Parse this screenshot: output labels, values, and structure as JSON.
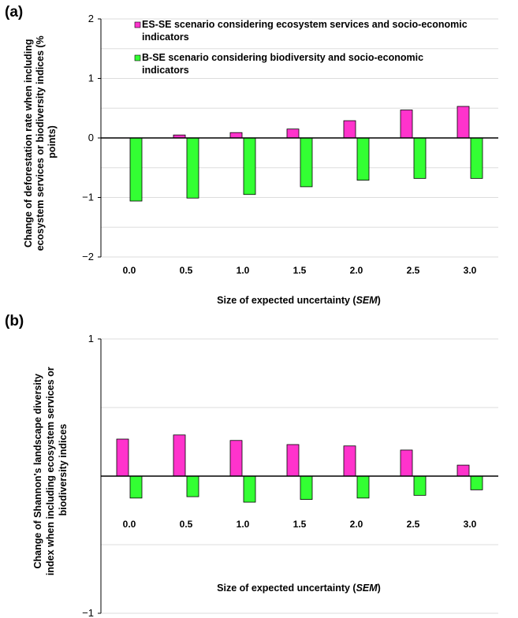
{
  "chart_data": [
    {
      "panel": "(a)",
      "type": "bar",
      "categories": [
        "0.0",
        "0.5",
        "1.0",
        "1.5",
        "2.0",
        "2.5",
        "3.0"
      ],
      "series": [
        {
          "name": "ES-SE scenario considering ecosystem services and socio-economic indicators",
          "color": "#ff33cc",
          "values": [
            0.0,
            0.05,
            0.09,
            0.15,
            0.29,
            0.47,
            0.53
          ]
        },
        {
          "name": "B-SE scenario considering biodiversity and socio-economic indicators",
          "color": "#33ff33",
          "values": [
            -1.06,
            -1.01,
            -0.95,
            -0.82,
            -0.71,
            -0.68,
            -0.68
          ]
        }
      ],
      "xlabel": "Size of expected uncertainty (",
      "xlabel_italic": "SEM",
      "xlabel_end": ")",
      "ylabel": [
        "Change of deforestation rate when including",
        "ecosystem services or biodiversity indices (%",
        "points)"
      ],
      "ylim": [
        -2,
        2
      ],
      "yticks": [
        "2",
        "1",
        "0",
        "−1",
        "−2"
      ],
      "legend": "top"
    },
    {
      "panel": "(b)",
      "type": "bar",
      "categories": [
        "0.0",
        "0.5",
        "1.0",
        "1.5",
        "2.0",
        "2.5",
        "3.0"
      ],
      "series": [
        {
          "name": "ES-SE scenario considering ecosystem services and socio-economic indicators",
          "color": "#ff33cc",
          "values": [
            0.27,
            0.3,
            0.26,
            0.23,
            0.22,
            0.19,
            0.08
          ]
        },
        {
          "name": "B-SE scenario considering biodiversity and socio-economic indicators",
          "color": "#33ff33",
          "values": [
            -0.16,
            -0.15,
            -0.19,
            -0.17,
            -0.16,
            -0.14,
            -0.1
          ]
        }
      ],
      "xlabel": "Size of expected uncertainty (",
      "xlabel_italic": "SEM",
      "xlabel_end": ")",
      "ylabel": [
        "Change of Shannon's landscape diversity",
        "index when including ecosystem services or",
        "biodiversity indices"
      ],
      "ylim": [
        -1,
        1
      ],
      "yticks": [
        "1",
        "−1"
      ]
    }
  ]
}
